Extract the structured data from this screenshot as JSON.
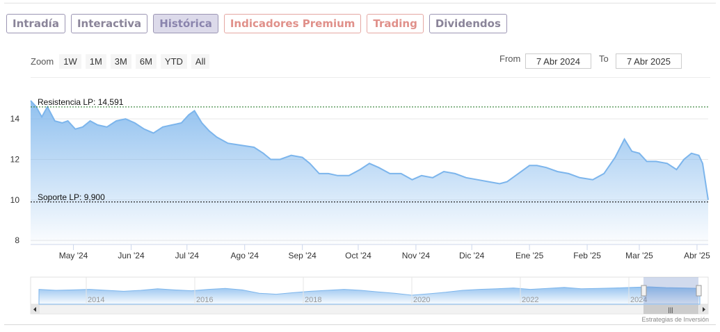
{
  "tabs": [
    {
      "label": "Intradía",
      "state": "normal"
    },
    {
      "label": "Interactiva",
      "state": "normal"
    },
    {
      "label": "Histórica",
      "state": "active"
    },
    {
      "label": "Indicadores Premium",
      "state": "premium"
    },
    {
      "label": "Trading",
      "state": "premium"
    },
    {
      "label": "Dividendos",
      "state": "normal"
    }
  ],
  "zoom": {
    "label": "Zoom",
    "buttons": [
      "1W",
      "1M",
      "3M",
      "6M",
      "YTD",
      "All"
    ]
  },
  "range": {
    "from_label": "From",
    "from_value": "7 Abr 2024",
    "to_label": "To",
    "to_value": "7 Abr 2025"
  },
  "chart_data": {
    "type": "area",
    "xlabel": "",
    "ylabel": "",
    "ylim": [
      7.8,
      15.0
    ],
    "yticks": [
      8,
      10,
      12,
      14
    ],
    "x_start": "2024-04-08",
    "x_end": "2025-04-07",
    "xticks": [
      {
        "label": "May '24",
        "date": "2024-05-01"
      },
      {
        "label": "Jun '24",
        "date": "2024-06-01"
      },
      {
        "label": "Jul '24",
        "date": "2024-07-01"
      },
      {
        "label": "Ago '24",
        "date": "2024-08-01"
      },
      {
        "label": "Sep '24",
        "date": "2024-09-01"
      },
      {
        "label": "Oct '24",
        "date": "2024-10-01"
      },
      {
        "label": "Nov '24",
        "date": "2024-11-01"
      },
      {
        "label": "Dic '24",
        "date": "2024-12-01"
      },
      {
        "label": "Ene '25",
        "date": "2025-01-01"
      },
      {
        "label": "Feb '25",
        "date": "2025-02-01"
      },
      {
        "label": "Mar '25",
        "date": "2025-03-01"
      },
      {
        "label": "Abr '25",
        "date": "2025-04-01"
      }
    ],
    "series": [
      {
        "name": "",
        "color": "#7cb5ec",
        "points": [
          [
            "2024-04-08",
            14.9
          ],
          [
            "2024-04-11",
            14.6
          ],
          [
            "2024-04-14",
            14.1
          ],
          [
            "2024-04-17",
            14.6
          ],
          [
            "2024-04-21",
            13.9
          ],
          [
            "2024-04-25",
            13.8
          ],
          [
            "2024-04-28",
            13.9
          ],
          [
            "2024-05-02",
            13.5
          ],
          [
            "2024-05-06",
            13.6
          ],
          [
            "2024-05-10",
            13.9
          ],
          [
            "2024-05-14",
            13.7
          ],
          [
            "2024-05-19",
            13.6
          ],
          [
            "2024-05-24",
            13.9
          ],
          [
            "2024-05-29",
            14.0
          ],
          [
            "2024-06-03",
            13.8
          ],
          [
            "2024-06-08",
            13.5
          ],
          [
            "2024-06-13",
            13.3
          ],
          [
            "2024-06-18",
            13.6
          ],
          [
            "2024-06-23",
            13.7
          ],
          [
            "2024-06-28",
            13.8
          ],
          [
            "2024-07-02",
            14.2
          ],
          [
            "2024-07-05",
            14.4
          ],
          [
            "2024-07-09",
            13.8
          ],
          [
            "2024-07-13",
            13.4
          ],
          [
            "2024-07-17",
            13.1
          ],
          [
            "2024-07-23",
            12.8
          ],
          [
            "2024-07-30",
            12.7
          ],
          [
            "2024-08-06",
            12.6
          ],
          [
            "2024-08-11",
            12.3
          ],
          [
            "2024-08-15",
            12.0
          ],
          [
            "2024-08-20",
            12.0
          ],
          [
            "2024-08-26",
            12.2
          ],
          [
            "2024-09-01",
            12.1
          ],
          [
            "2024-09-05",
            11.8
          ],
          [
            "2024-09-10",
            11.3
          ],
          [
            "2024-09-15",
            11.3
          ],
          [
            "2024-09-20",
            11.2
          ],
          [
            "2024-09-26",
            11.2
          ],
          [
            "2024-10-02",
            11.5
          ],
          [
            "2024-10-07",
            11.8
          ],
          [
            "2024-10-12",
            11.6
          ],
          [
            "2024-10-18",
            11.3
          ],
          [
            "2024-10-24",
            11.3
          ],
          [
            "2024-10-30",
            11.0
          ],
          [
            "2024-11-04",
            11.2
          ],
          [
            "2024-11-10",
            11.1
          ],
          [
            "2024-11-16",
            11.4
          ],
          [
            "2024-11-22",
            11.3
          ],
          [
            "2024-11-28",
            11.1
          ],
          [
            "2024-12-04",
            11.0
          ],
          [
            "2024-12-10",
            10.9
          ],
          [
            "2024-12-16",
            10.8
          ],
          [
            "2024-12-20",
            10.9
          ],
          [
            "2024-12-26",
            11.3
          ],
          [
            "2025-01-01",
            11.7
          ],
          [
            "2025-01-05",
            11.7
          ],
          [
            "2025-01-10",
            11.6
          ],
          [
            "2025-01-16",
            11.4
          ],
          [
            "2025-01-22",
            11.3
          ],
          [
            "2025-01-28",
            11.1
          ],
          [
            "2025-02-04",
            11.0
          ],
          [
            "2025-02-10",
            11.3
          ],
          [
            "2025-02-16",
            12.1
          ],
          [
            "2025-02-21",
            13.0
          ],
          [
            "2025-02-25",
            12.4
          ],
          [
            "2025-03-01",
            12.3
          ],
          [
            "2025-03-05",
            11.9
          ],
          [
            "2025-03-10",
            11.9
          ],
          [
            "2025-03-16",
            11.8
          ],
          [
            "2025-03-21",
            11.5
          ],
          [
            "2025-03-25",
            12.0
          ],
          [
            "2025-03-29",
            12.3
          ],
          [
            "2025-04-02",
            12.2
          ],
          [
            "2025-04-04",
            11.8
          ],
          [
            "2025-04-07",
            10.0
          ]
        ]
      }
    ],
    "annotations": [
      {
        "label": "Resistencia LP: 14,591",
        "value": 14.591,
        "color": "#2e7d32",
        "style": "dotted"
      },
      {
        "label": "Soporte LP: 9,900",
        "value": 9.9,
        "color": "#222222",
        "style": "dotted"
      }
    ],
    "navigator": {
      "years": [
        "2014",
        "2016",
        "2018",
        "2020",
        "2022",
        "2024"
      ],
      "series": [
        0.55,
        0.5,
        0.52,
        0.55,
        0.5,
        0.45,
        0.5,
        0.58,
        0.52,
        0.48,
        0.55,
        0.6,
        0.52,
        0.35,
        0.3,
        0.38,
        0.45,
        0.5,
        0.55,
        0.5,
        0.42,
        0.35,
        0.25,
        0.32,
        0.4,
        0.5,
        0.55,
        0.58,
        0.62,
        0.55,
        0.6,
        0.65,
        0.58,
        0.6,
        0.62,
        0.65,
        0.68,
        0.64,
        0.62,
        0.6
      ]
    }
  },
  "credit": "Estrategias de Inversión"
}
